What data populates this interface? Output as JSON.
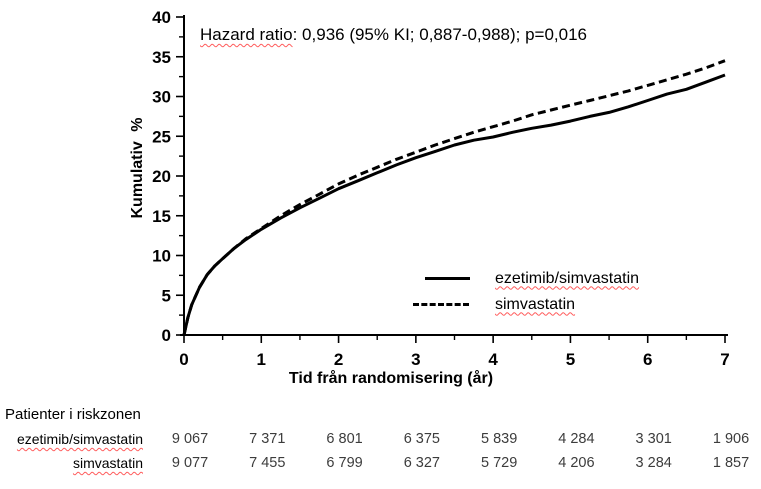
{
  "annotation": {
    "underlined": "Hazard ratio",
    "rest": ": 0,936 (95% KI; 0,887-0,988); p=0,016"
  },
  "chart_data": {
    "type": "line",
    "title": "Hazard ratio: 0,936 (95% KI; 0,887-0,988); p=0,016",
    "xlabel": "Tid från randomisering (år)",
    "ylabel": "Kumulativ %",
    "xlim": [
      0,
      7
    ],
    "ylim": [
      0,
      40
    ],
    "x_major_ticks": [
      0,
      1,
      2,
      3,
      4,
      5,
      6,
      7
    ],
    "x_minor_step": 0.5,
    "y_major_ticks": [
      0,
      5,
      10,
      15,
      20,
      25,
      30,
      35,
      40
    ],
    "y_minor_step": 2.5,
    "grid": false,
    "legend_position": "inside-lower-right",
    "x": [
      0,
      0.05,
      0.1,
      0.2,
      0.3,
      0.4,
      0.5,
      0.65,
      0.8,
      1.0,
      1.25,
      1.5,
      1.75,
      2.0,
      2.25,
      2.5,
      2.75,
      3.0,
      3.25,
      3.5,
      3.75,
      4.0,
      4.25,
      4.5,
      4.75,
      5.0,
      5.25,
      5.5,
      5.75,
      6.0,
      6.25,
      6.5,
      6.75,
      7.0
    ],
    "series": [
      {
        "name": "ezetimib/simvastatin",
        "style": "solid",
        "y": [
          0,
          2.2,
          3.8,
          6.0,
          7.6,
          8.7,
          9.6,
          10.9,
          12.0,
          13.3,
          14.7,
          16.0,
          17.2,
          18.4,
          19.4,
          20.4,
          21.4,
          22.3,
          23.1,
          23.9,
          24.5,
          24.9,
          25.5,
          26.0,
          26.4,
          26.9,
          27.5,
          28.0,
          28.7,
          29.5,
          30.3,
          30.9,
          31.8,
          32.7
        ]
      },
      {
        "name": "simvastatin",
        "style": "dashed",
        "y": [
          0,
          2.2,
          3.8,
          6.0,
          7.6,
          8.7,
          9.6,
          10.9,
          12.1,
          13.4,
          15.0,
          16.4,
          17.7,
          19.0,
          20.1,
          21.1,
          22.1,
          23.0,
          23.9,
          24.7,
          25.5,
          26.2,
          26.9,
          27.7,
          28.3,
          28.9,
          29.5,
          30.1,
          30.7,
          31.4,
          32.1,
          32.8,
          33.6,
          34.5
        ]
      }
    ]
  },
  "legend": {
    "items": [
      {
        "label": "ezetimib/simvastatin",
        "style": "solid"
      },
      {
        "label": "simvastatin",
        "style": "dashed"
      }
    ]
  },
  "risk_table": {
    "title": "Patienter i riskzonen",
    "rows": [
      {
        "label": "ezetimib/simvastatin",
        "values": [
          "9 067",
          "7 371",
          "6 801",
          "6 375",
          "5 839",
          "4 284",
          "3 301",
          "1 906"
        ]
      },
      {
        "label": "simvastatin",
        "values": [
          "9 077",
          "7 455",
          "6 799",
          "6 327",
          "5 729",
          "4 206",
          "3 284",
          "1 857"
        ]
      }
    ]
  },
  "colors": {
    "line": "#000000",
    "text": "#000000",
    "table_text": "#3c3c3c",
    "spellcheck_underline": "#ff5b5b",
    "background": "#ffffff"
  }
}
